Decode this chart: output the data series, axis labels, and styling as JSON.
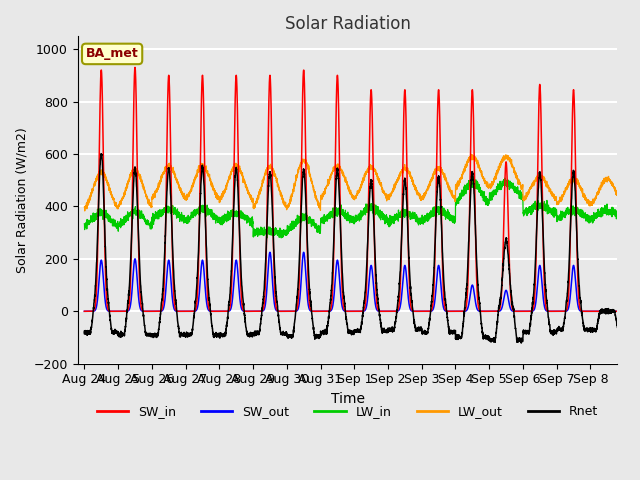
{
  "title": "Solar Radiation",
  "xlabel": "Time",
  "ylabel": "Solar Radiation (W/m2)",
  "station_label": "BA_met",
  "ylim": [
    -200,
    1050
  ],
  "colors": {
    "SW_in": "#ff0000",
    "SW_out": "#0000ff",
    "LW_in": "#00cc00",
    "LW_out": "#ff9900",
    "Rnet": "#000000"
  },
  "bg_color": "#e8e8e8",
  "grid_color": "#ffffff",
  "xtick_labels": [
    "Aug 24",
    "Aug 25",
    "Aug 26",
    "Aug 27",
    "Aug 28",
    "Aug 29",
    "Aug 30",
    "Aug 31",
    "Sep 1",
    "Sep 2",
    "Sep 3",
    "Sep 4",
    "Sep 5",
    "Sep 6",
    "Sep 7",
    "Sep 8"
  ],
  "SW_in_peaks": [
    920,
    930,
    900,
    900,
    900,
    900,
    920,
    900,
    845,
    845,
    845,
    845,
    570,
    865,
    845,
    0
  ],
  "SW_out_peaks": [
    195,
    200,
    195,
    195,
    195,
    225,
    225,
    195,
    175,
    175,
    175,
    100,
    80,
    175,
    175,
    0
  ],
  "LW_in_base": [
    310,
    310,
    340,
    335,
    330,
    295,
    295,
    335,
    335,
    335,
    335,
    390,
    425,
    365,
    345,
    345
  ],
  "LW_in_peaks": [
    375,
    380,
    390,
    390,
    375,
    305,
    360,
    380,
    395,
    375,
    385,
    490,
    490,
    405,
    385,
    385
  ],
  "LW_out_base": [
    375,
    380,
    415,
    410,
    405,
    375,
    370,
    415,
    415,
    415,
    415,
    455,
    455,
    415,
    395,
    395
  ],
  "LW_out_peaks": [
    530,
    540,
    555,
    555,
    555,
    550,
    575,
    555,
    550,
    545,
    545,
    590,
    590,
    515,
    505,
    505
  ],
  "Rnet_peaks": [
    600,
    545,
    545,
    550,
    545,
    530,
    540,
    540,
    500,
    500,
    510,
    530,
    270,
    530,
    530,
    0
  ],
  "Rnet_night": [
    -80,
    -90,
    -90,
    -90,
    -90,
    -85,
    -95,
    -80,
    -75,
    -70,
    -80,
    -100,
    -110,
    -80,
    -70,
    -70
  ]
}
